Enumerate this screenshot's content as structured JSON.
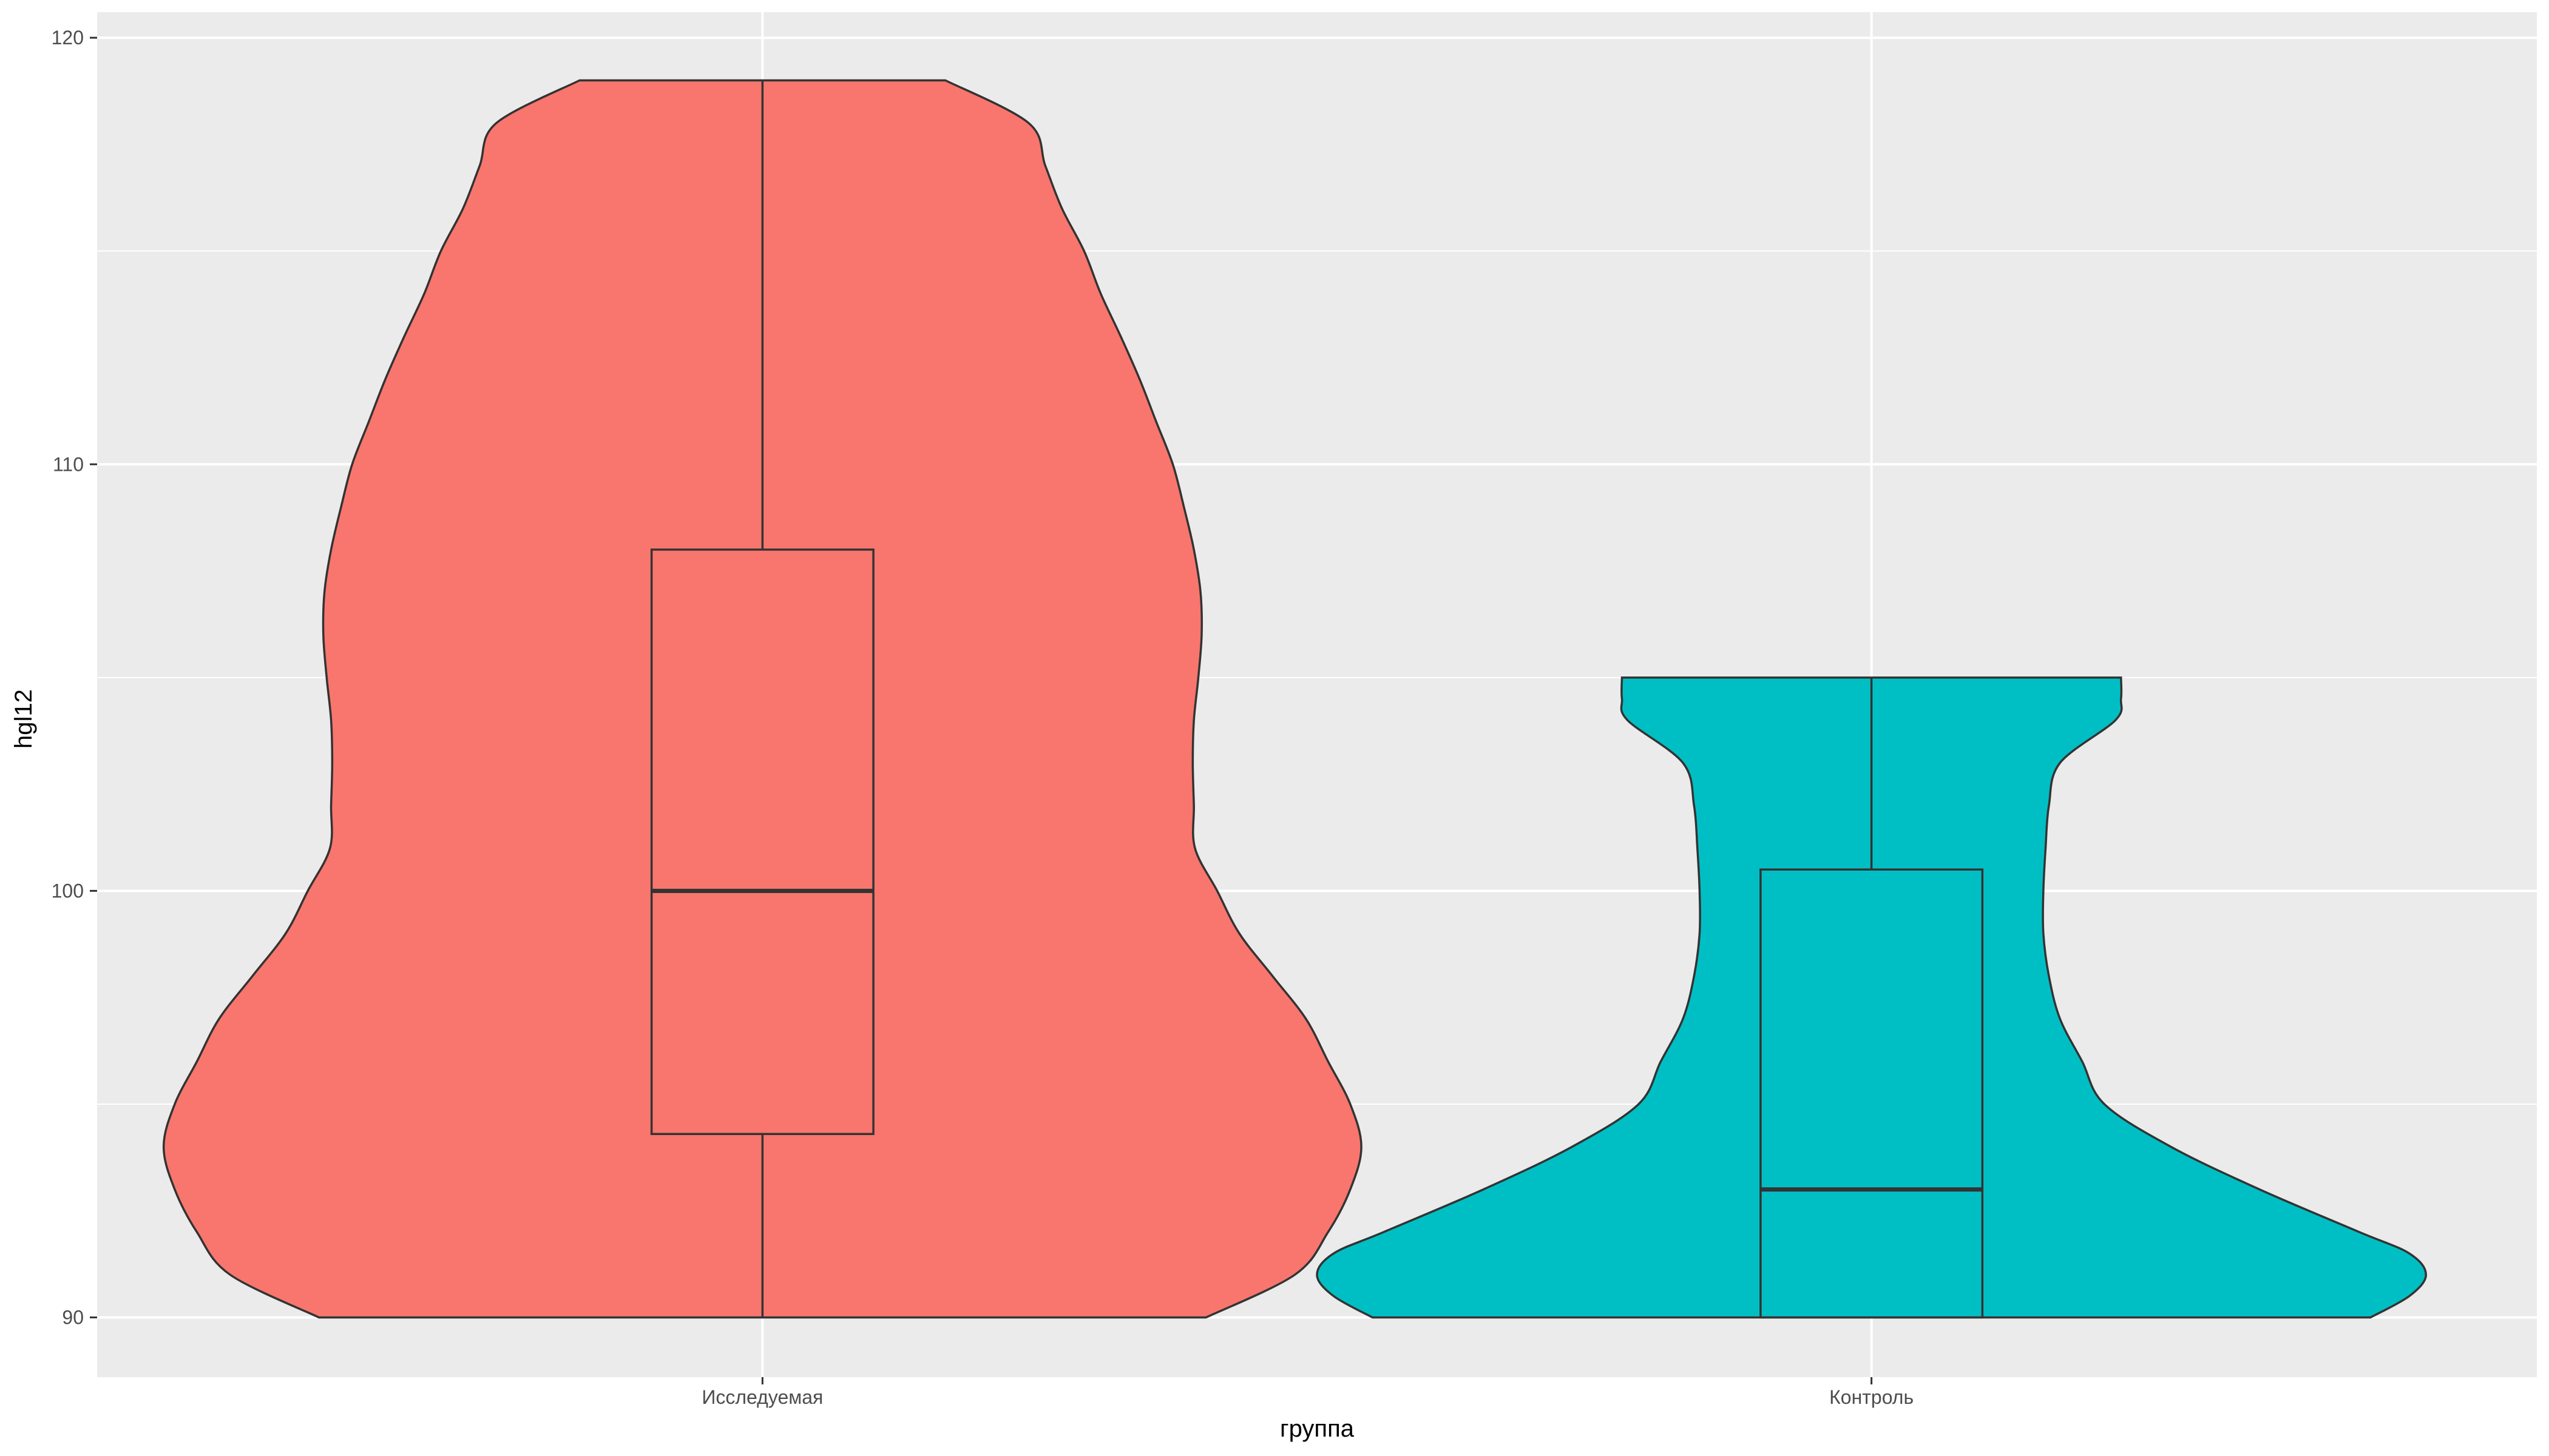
{
  "chart_data": {
    "type": "violin",
    "xlabel": "группа",
    "ylabel": "hgl12",
    "ylim": [
      88.6,
      120.6
    ],
    "yticks": [
      90,
      100,
      110,
      120
    ],
    "y_minor_gridlines": [
      95,
      105,
      115
    ],
    "grid": true,
    "legend": "none",
    "colors": {
      "panel_background": "#ebebeb",
      "gridline": "#ffffff",
      "outline": "#333333",
      "tick_label": "#4d4d4d",
      "axis_title": "#000000"
    },
    "categories": [
      "Исследуемая",
      "Контроль"
    ],
    "series": [
      {
        "category": "Исследуемая",
        "color": "#f8766d",
        "violin_range": [
          90,
          119
        ],
        "density_half_widths": [
          [
            90.0,
            0.4
          ],
          [
            91.0,
            0.48
          ],
          [
            92.0,
            0.51
          ],
          [
            93.0,
            0.53
          ],
          [
            94.0,
            0.54
          ],
          [
            95.0,
            0.53
          ],
          [
            96.0,
            0.51
          ],
          [
            97.0,
            0.49
          ],
          [
            98.0,
            0.46
          ],
          [
            99.0,
            0.43
          ],
          [
            100.0,
            0.41
          ],
          [
            101.0,
            0.39
          ],
          [
            102.0,
            0.389
          ],
          [
            103.0,
            0.388
          ],
          [
            104.0,
            0.389
          ],
          [
            105.0,
            0.393
          ],
          [
            106.0,
            0.396
          ],
          [
            107.0,
            0.395
          ],
          [
            108.0,
            0.389
          ],
          [
            109.0,
            0.38
          ],
          [
            110.0,
            0.37
          ],
          [
            111.0,
            0.355
          ],
          [
            112.0,
            0.34
          ],
          [
            113.0,
            0.323
          ],
          [
            114.0,
            0.305
          ],
          [
            115.0,
            0.29
          ],
          [
            116.0,
            0.27
          ],
          [
            117.0,
            0.255
          ],
          [
            118.0,
            0.24
          ],
          [
            119.0,
            0.165
          ]
        ],
        "boxplot": {
          "lower_whisker": 90,
          "q1": 94.3,
          "median": 100,
          "q3": 108,
          "upper_whisker": 119
        }
      },
      {
        "category": "Контроль",
        "color": "#00bfc4",
        "violin_range": [
          90,
          105
        ],
        "density_half_widths": [
          [
            90.0,
            0.45
          ],
          [
            90.5,
            0.485
          ],
          [
            91.0,
            0.5
          ],
          [
            91.5,
            0.485
          ],
          [
            92.0,
            0.44
          ],
          [
            93.0,
            0.35
          ],
          [
            94.0,
            0.27
          ],
          [
            95.0,
            0.21
          ],
          [
            96.0,
            0.19
          ],
          [
            97.0,
            0.17
          ],
          [
            98.0,
            0.16
          ],
          [
            99.0,
            0.155
          ],
          [
            100.0,
            0.155
          ],
          [
            101.0,
            0.157
          ],
          [
            102.0,
            0.16
          ],
          [
            103.0,
            0.17
          ],
          [
            104.0,
            0.22
          ],
          [
            104.5,
            0.225
          ],
          [
            105.0,
            0.225
          ]
        ],
        "boxplot": {
          "lower_whisker": 90,
          "q1": 90,
          "median": 93,
          "q3": 100.5,
          "upper_whisker": 105
        }
      }
    ]
  }
}
